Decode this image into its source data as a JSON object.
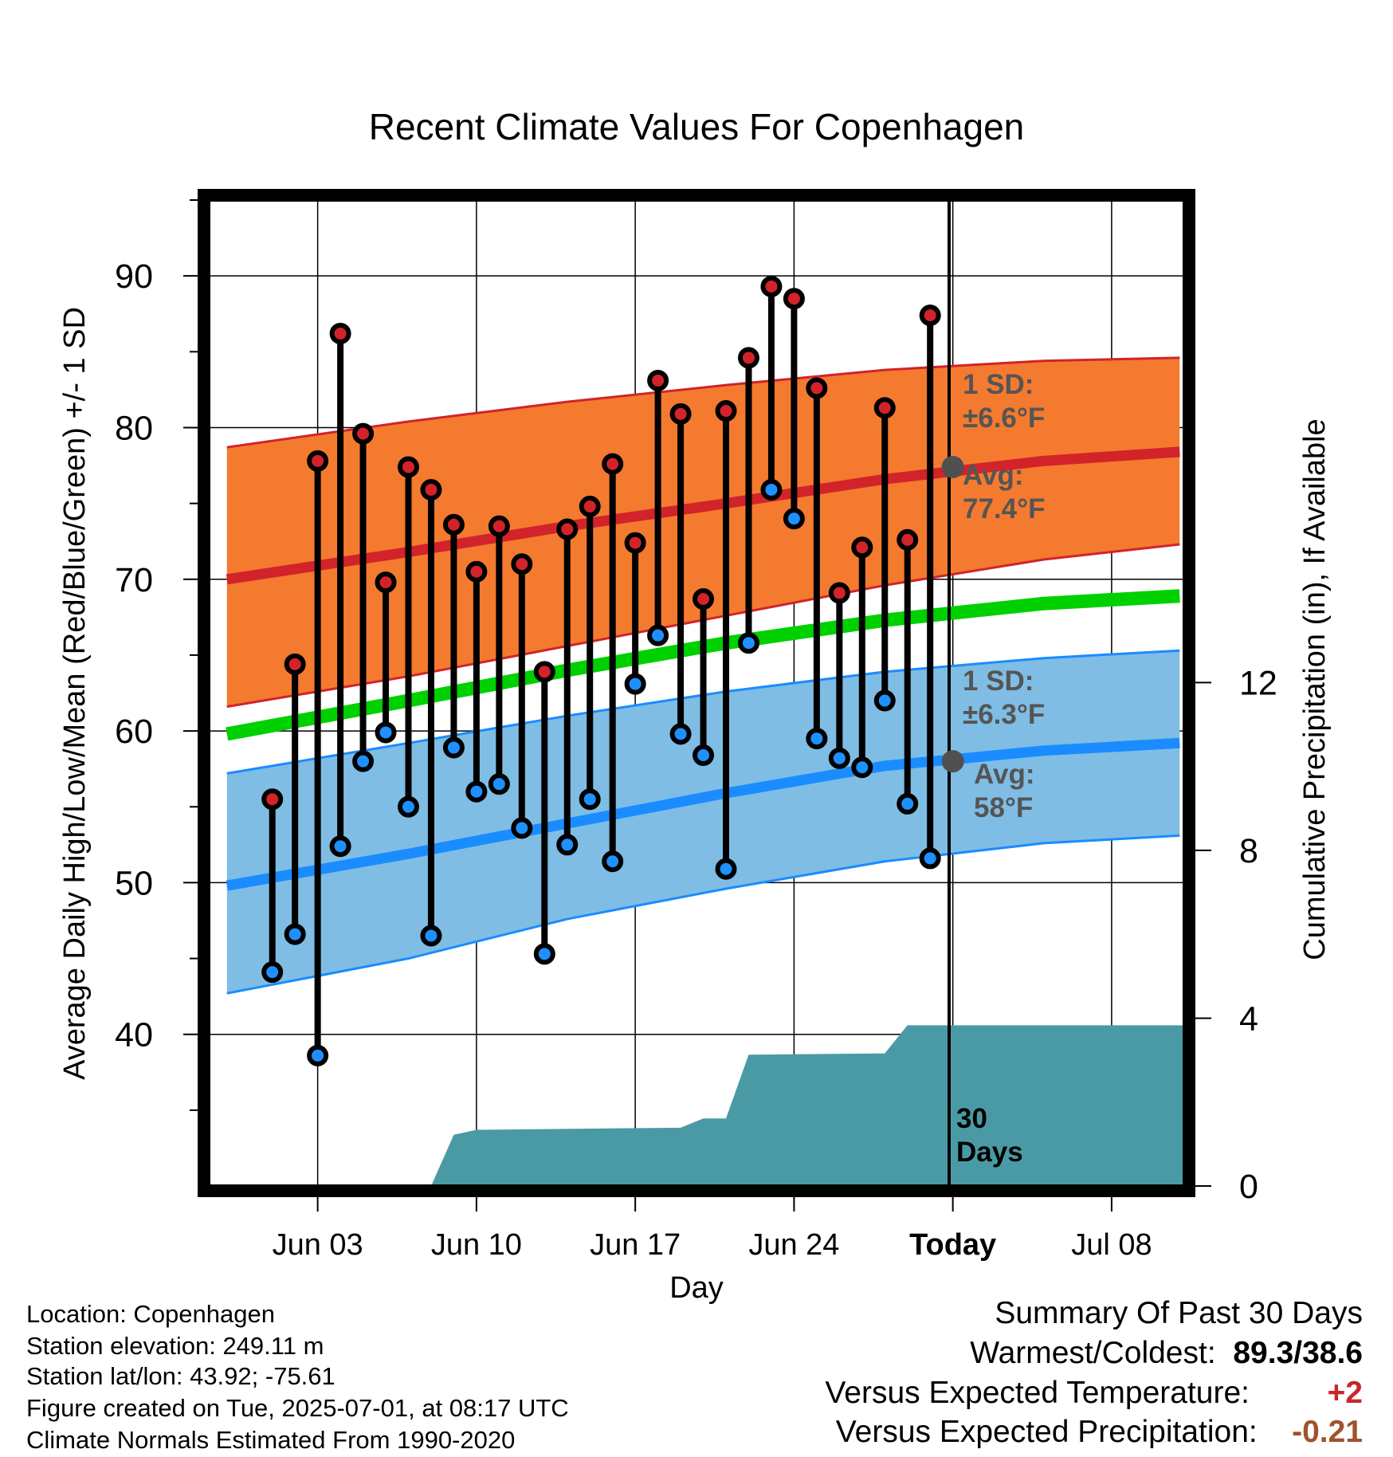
{
  "chart_data": {
    "type": "line",
    "title": "Recent Climate Values For Copenhagen",
    "xlabel": "Day",
    "ylabel": "Average Daily High/Low/Mean (Red/Blue/Green) +/- 1 SD",
    "y2label": "Cumulative Precipitation (in), If Available",
    "x_ticks": [
      "Jun 03",
      "Jun 10",
      "Jun 17",
      "Jun 24",
      "Today",
      "Jul 08"
    ],
    "y_ticks": [
      "40",
      "50",
      "60",
      "70",
      "80",
      "90"
    ],
    "y2_ticks": [
      "0",
      "4",
      "8",
      "12"
    ],
    "ylim": [
      30,
      95
    ],
    "y2lim": [
      0,
      23.5
    ],
    "days": [
      "Jun 01",
      "Jun 02",
      "Jun 03",
      "Jun 04",
      "Jun 05",
      "Jun 06",
      "Jun 07",
      "Jun 08",
      "Jun 09",
      "Jun 10",
      "Jun 11",
      "Jun 12",
      "Jun 13",
      "Jun 14",
      "Jun 15",
      "Jun 16",
      "Jun 17",
      "Jun 18",
      "Jun 19",
      "Jun 20",
      "Jun 21",
      "Jun 22",
      "Jun 23",
      "Jun 24",
      "Jun 25",
      "Jun 26",
      "Jun 27",
      "Jun 28",
      "Jun 29",
      "Jun 30"
    ],
    "daily_high": [
      55.5,
      64.4,
      77.8,
      86.2,
      79.6,
      69.8,
      77.4,
      75.9,
      73.6,
      70.5,
      73.5,
      71.0,
      63.9,
      73.3,
      74.8,
      77.6,
      72.4,
      83.1,
      80.9,
      68.7,
      81.1,
      84.6,
      89.3,
      88.5,
      82.6,
      69.1,
      72.1,
      81.3,
      72.6,
      87.4
    ],
    "daily_low": [
      44.1,
      46.6,
      38.6,
      52.4,
      58.0,
      59.9,
      55.0,
      46.5,
      58.9,
      56.0,
      56.5,
      53.6,
      45.3,
      52.5,
      55.5,
      51.4,
      63.1,
      66.3,
      59.8,
      58.4,
      50.9,
      65.8,
      75.9,
      74.0,
      59.5,
      58.2,
      57.6,
      62.0,
      55.2,
      51.6
    ],
    "normals": {
      "dates": [
        "May 30",
        "Jun 07",
        "Jun 14",
        "Jun 21",
        "Jun 28",
        "Jul 05",
        "Jul 11"
      ],
      "high_avg": [
        70.0,
        71.8,
        73.5,
        75.0,
        76.6,
        77.8,
        78.4
      ],
      "high_sd_upper": [
        78.7,
        80.4,
        81.7,
        82.8,
        83.8,
        84.4,
        84.6
      ],
      "high_sd_lower": [
        61.6,
        63.6,
        65.6,
        67.6,
        69.6,
        71.3,
        72.3
      ],
      "low_avg": [
        49.8,
        51.9,
        53.9,
        55.9,
        57.7,
        58.7,
        59.2
      ],
      "low_sd_upper": [
        57.2,
        59.2,
        61.0,
        62.6,
        63.9,
        64.8,
        65.3
      ],
      "low_sd_lower": [
        42.7,
        45.0,
        47.6,
        49.6,
        51.4,
        52.6,
        53.1
      ],
      "mean_avg": [
        59.8,
        62.0,
        64.0,
        65.8,
        67.3,
        68.4,
        68.9
      ]
    },
    "precip_cumulative": {
      "x": [
        "Jun 08",
        "Jun 09",
        "Jun 10",
        "Jun 19",
        "Jun 20",
        "Jun 21",
        "Jun 22",
        "Jun 28",
        "Jun 29",
        "Jul 11"
      ],
      "y": [
        0.0,
        1.22,
        1.34,
        1.39,
        1.61,
        1.61,
        3.13,
        3.16,
        3.83,
        3.83
      ]
    },
    "annotations": {
      "high_sd_label": "1 SD:",
      "high_sd_value": "±6.6°F",
      "high_avg_label": "Avg:",
      "high_avg_value": "77.4°F",
      "low_sd_label": "1 SD:",
      "low_sd_value": "±6.3°F",
      "low_avg_label": "Avg:",
      "low_avg_value": "58°F",
      "window_line1": "30",
      "window_line2": "Days"
    },
    "colors": {
      "high_band": "#f47a2f",
      "high_line": "#d2232a",
      "low_band": "#7fbde4",
      "low_line": "#1a8cff",
      "mean_line": "#00d000",
      "precip_fill": "#4a9aa5",
      "high_marker": "#d2232a",
      "low_marker": "#1e90ff",
      "avg_marker": "#505050",
      "annotation_text": "#555555"
    }
  },
  "info": {
    "location": "Location: Copenhagen",
    "elevation": "Station elevation: 249.11 m",
    "latlon": "Station lat/lon: 43.92; -75.61",
    "created": "Figure created on Tue, 2025-07-01, at 08:17 UTC",
    "normals": "Climate Normals Estimated From 1990-2020"
  },
  "summary": {
    "title": "Summary Of Past 30 Days",
    "warmest_label": "Warmest/Coldest:",
    "warmest_value": "89.3/38.6",
    "temp_label": "Versus Expected Temperature:",
    "temp_value": "+2",
    "precip_label": "Versus Expected Precipitation:",
    "precip_value": "-0.21"
  }
}
